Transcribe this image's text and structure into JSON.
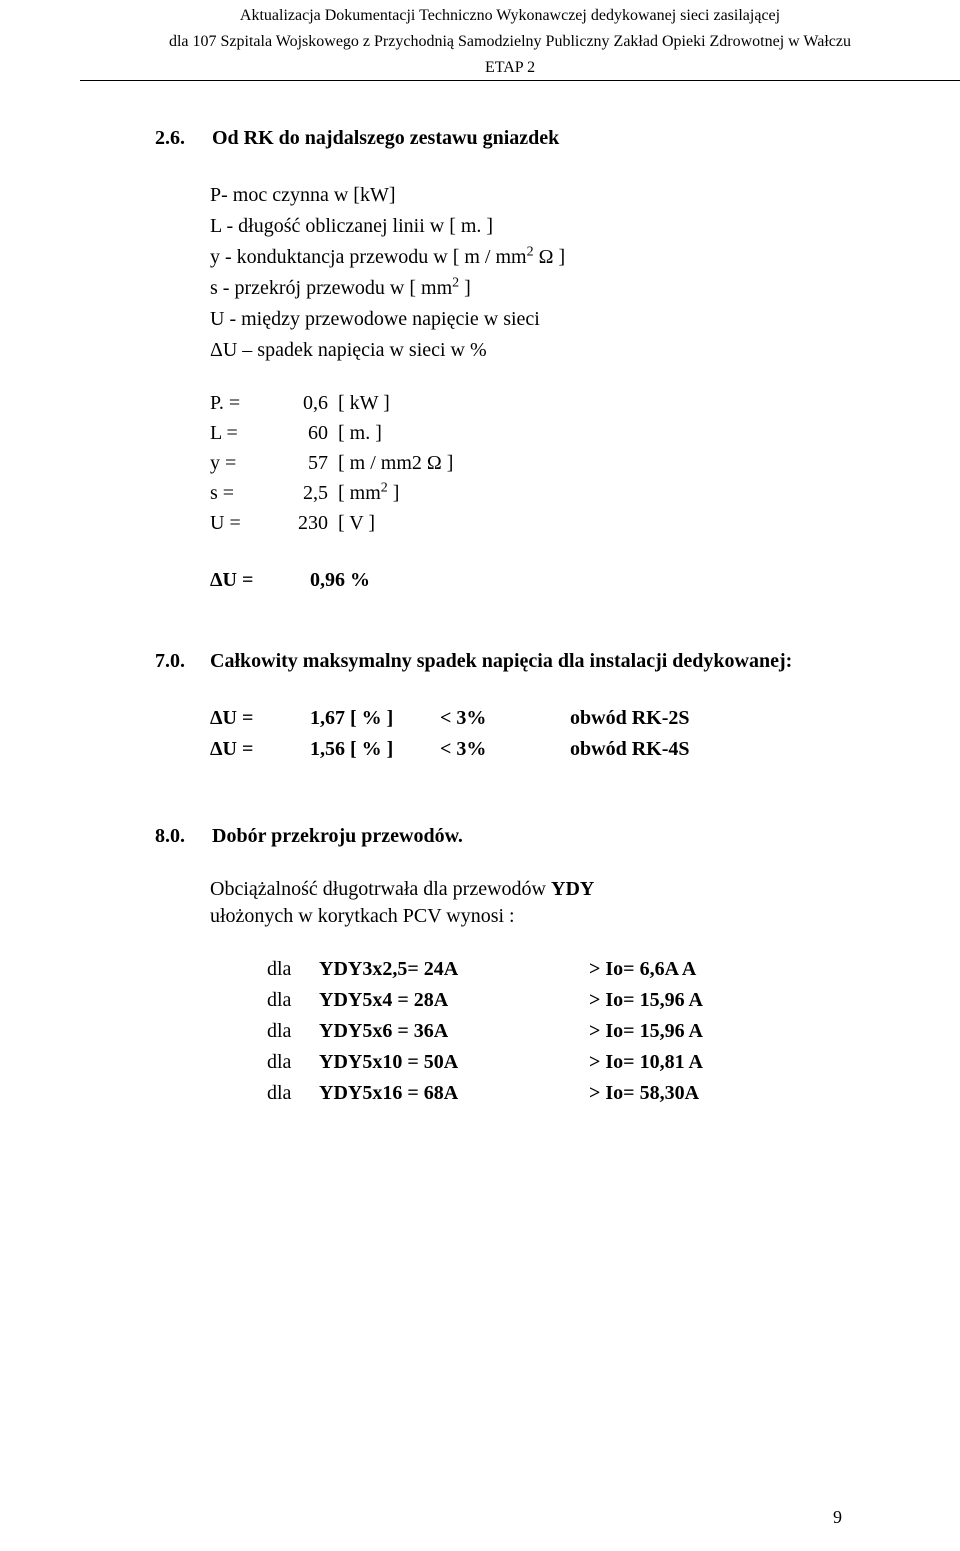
{
  "header": {
    "line1": "Aktualizacja Dokumentacji Techniczno Wykonawczej dedykowanej sieci zasilającej",
    "line2": "dla 107 Szpitala Wojskowego z Przychodnią Samodzielny Publiczny Zakład Opieki Zdrowotnej w Wałczu",
    "line3": "ETAP 2"
  },
  "section26": {
    "number": "2.6.",
    "title": "Od RK do najdalszego zestawu gniazdek"
  },
  "defs": {
    "P": "P- moc czynna w [kW]",
    "L": "L - długość obliczanej linii w [ m. ]",
    "y_pre": "y - konduktancja przewodu w  [ m / mm",
    "y_post": "  Ω ]",
    "s_pre": "s - przekrój przewodu w [ mm",
    "s_post": " ]",
    "U": "U - między przewodowe napięcie w sieci",
    "dU": "ΔU – spadek napięcia w sieci w  %"
  },
  "vals": {
    "P": {
      "sym": "P. =",
      "num": "0,6",
      "unit": "[ kW ]"
    },
    "L": {
      "sym": "L =",
      "num": "60",
      "unit": "[ m. ]"
    },
    "y": {
      "sym": "y =",
      "num": "57",
      "unit": "[ m / mm2  Ω ]"
    },
    "s": {
      "sym": "s =",
      "num": "2,5",
      "unit_pre": "[ mm",
      "unit_post": " ]"
    },
    "U": {
      "sym": "U =",
      "num": "230",
      "unit": "[ V ]"
    }
  },
  "du_result": {
    "sym": "ΔU =",
    "val": "0,96  %"
  },
  "section70": {
    "number": "7.0.",
    "title": "Całkowity maksymalny spadek napięcia dla instalacji dedykowanej:"
  },
  "du_table": [
    {
      "sym": "ΔU =",
      "val": "1,67  [ % ]",
      "cmp": "< 3%",
      "label": "obwód RK-2S"
    },
    {
      "sym": "ΔU =",
      "val": "1,56  [ % ]",
      "cmp": "< 3%",
      "label": "obwód RK-4S"
    }
  ],
  "section80": {
    "number": "8.0.",
    "title": "Dobór przekroju przewodów."
  },
  "body80": {
    "line1": "Obciążalność długotrwała dla przewodów YDY",
    "line2": "ułożonych w korytkach PCV wynosi :"
  },
  "spec_table": [
    {
      "dla": "dla",
      "lhs": "YDY3x2,5= 24A",
      "rhs": "> Io= 6,6A A"
    },
    {
      "dla": "dla",
      "lhs": "YDY5x4 = 28A",
      "rhs": "> Io= 15,96 A"
    },
    {
      "dla": "dla",
      "lhs": "YDY5x6 = 36A",
      "rhs": "> Io= 15,96 A"
    },
    {
      "dla": "dla",
      "lhs": "YDY5x10 = 50A",
      "rhs": "> Io= 10,81 A"
    },
    {
      "dla": "dla",
      "lhs": "YDY5x16 = 68A",
      "rhs": "> Io= 58,30A"
    }
  ],
  "page_number": "9"
}
